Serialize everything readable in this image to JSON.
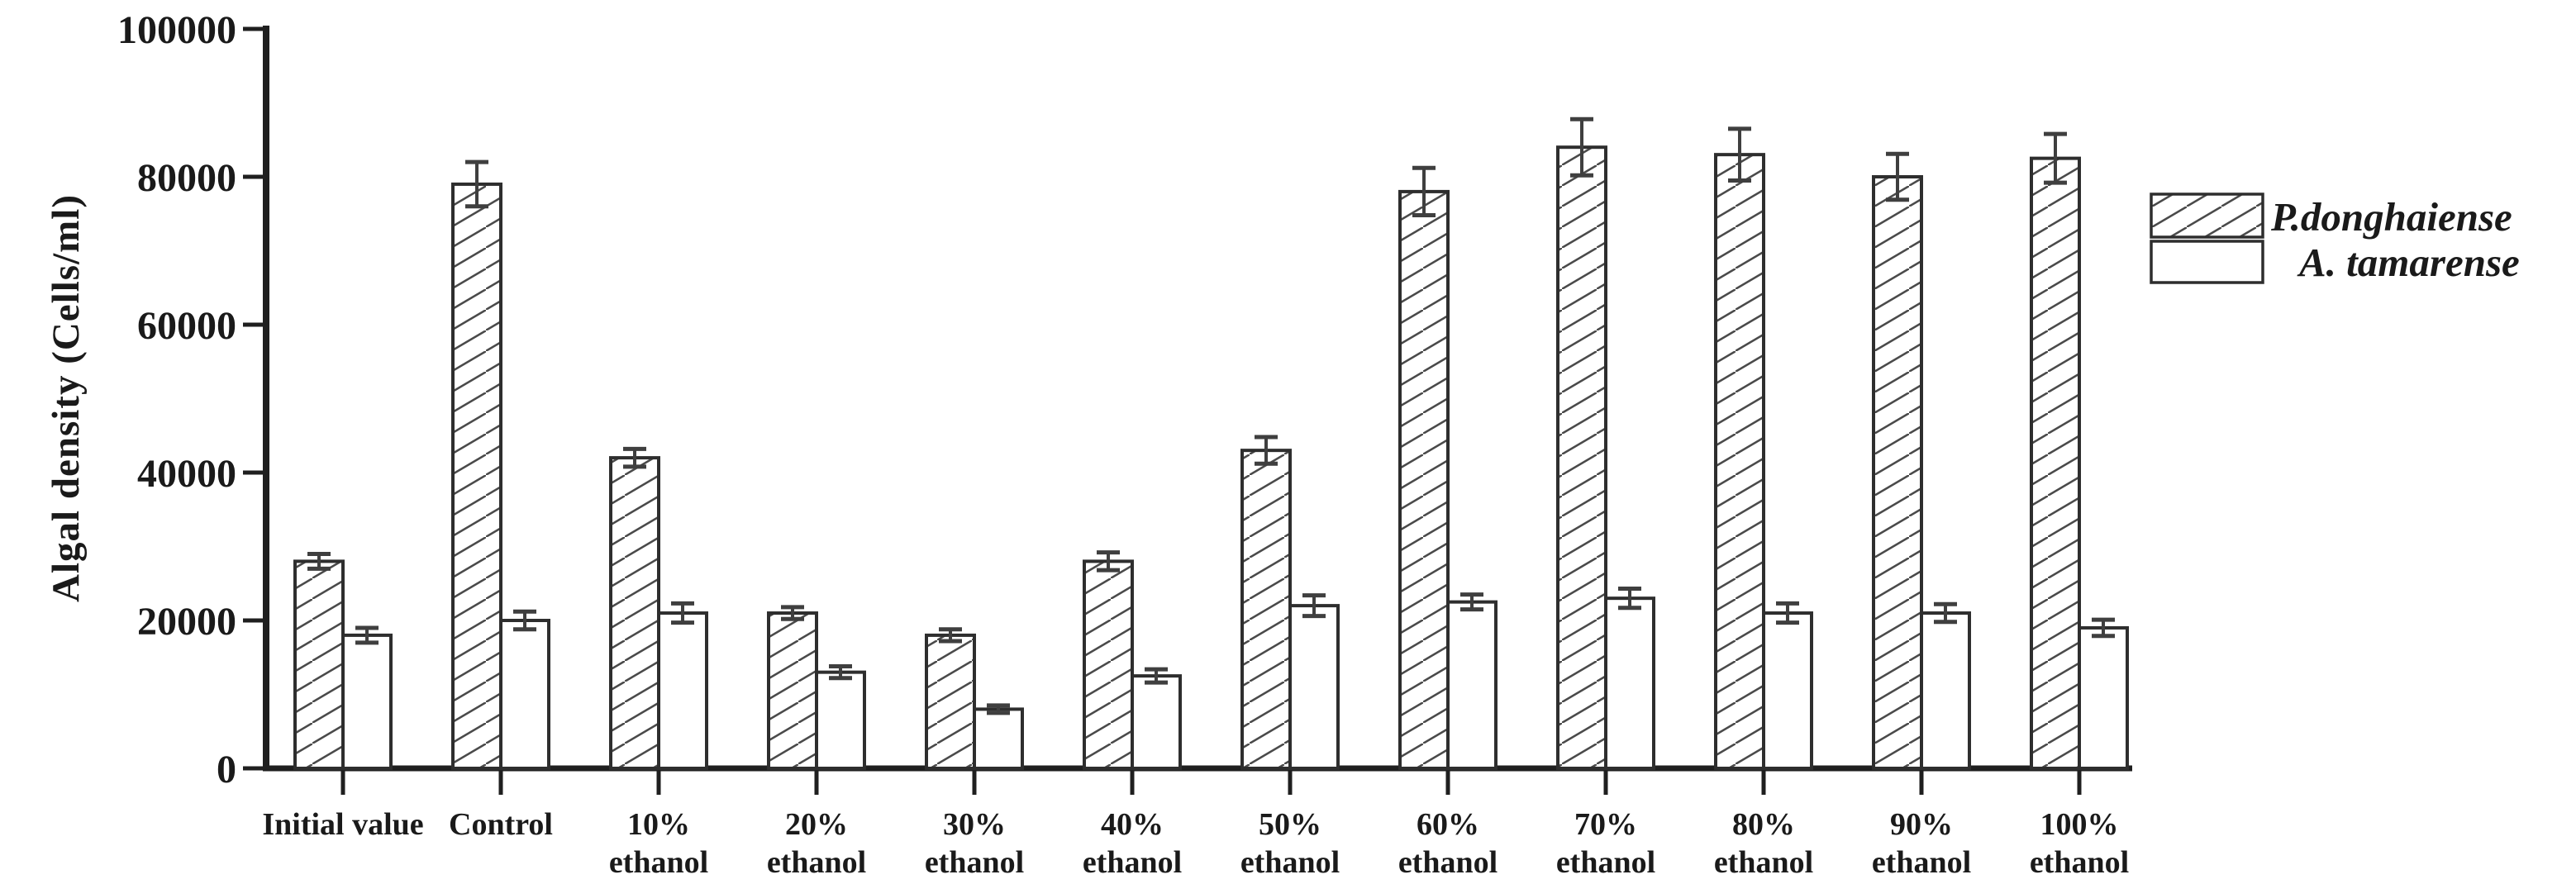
{
  "figure": {
    "background": "#ffffff",
    "axis_color": "#1f1f1f",
    "bar_edge_color": "#2e2e2e",
    "error_bar_color": "#3f3f3f",
    "hatch_color": "#4a4a4a",
    "text_color": "#1a1a1a"
  },
  "chart_data": {
    "type": "bar",
    "title": "",
    "xlabel": "",
    "ylabel": "Algal density (Cells/ml)",
    "ylim": [
      0,
      100000
    ],
    "yticks": [
      0,
      20000,
      40000,
      60000,
      80000,
      100000
    ],
    "ytick_labels": [
      "0",
      "20000",
      "40000",
      "60000",
      "80000",
      "100000"
    ],
    "grid": "off",
    "legend_position": "right-outside",
    "categories": [
      [
        "Initial value"
      ],
      [
        "Control"
      ],
      [
        "10%",
        "ethanol"
      ],
      [
        "20%",
        "ethanol"
      ],
      [
        "30%",
        "ethanol"
      ],
      [
        "40%",
        "ethanol"
      ],
      [
        "50%",
        "ethanol"
      ],
      [
        "60%",
        "ethanol"
      ],
      [
        "70%",
        "ethanol"
      ],
      [
        "80%",
        "ethanol"
      ],
      [
        "90%",
        "ethanol"
      ],
      [
        "100%",
        "ethanol"
      ]
    ],
    "series": [
      {
        "name": "P.donghaiense",
        "style": "hatched",
        "values": [
          28000,
          79000,
          42000,
          21000,
          18000,
          28000,
          43000,
          78000,
          84000,
          83000,
          80000,
          82500
        ],
        "errors": [
          1000,
          3000,
          1200,
          800,
          800,
          1200,
          1800,
          3200,
          3800,
          3500,
          3100,
          3300
        ]
      },
      {
        "name": "A. tamarense",
        "style": "open",
        "values": [
          18000,
          20000,
          21000,
          13000,
          8000,
          12500,
          22000,
          22500,
          23000,
          21000,
          21000,
          19000
        ],
        "errors": [
          1000,
          1200,
          1300,
          800,
          500,
          900,
          1400,
          1000,
          1300,
          1300,
          1200,
          1100
        ]
      }
    ]
  }
}
